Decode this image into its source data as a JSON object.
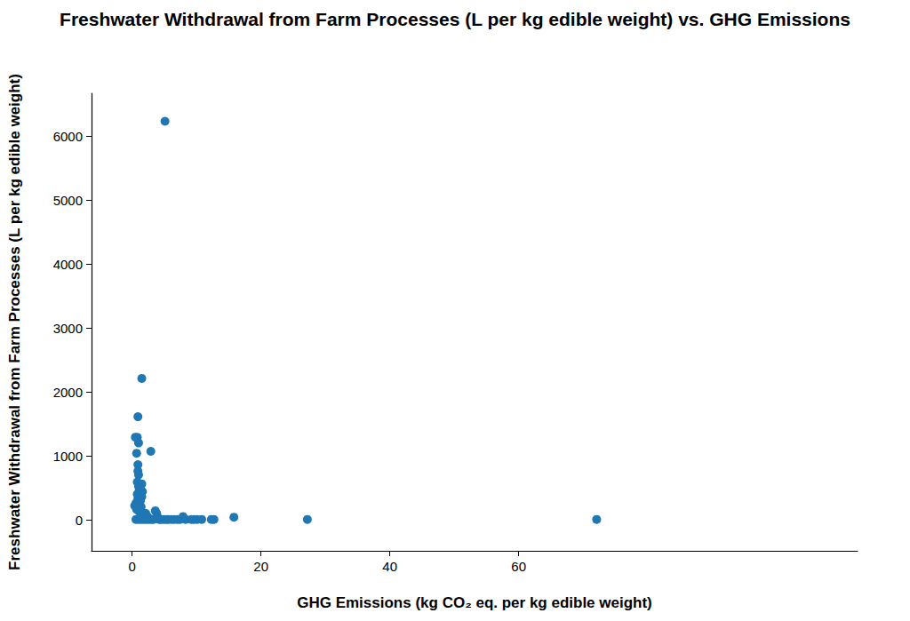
{
  "chart_data": {
    "type": "scatter",
    "title": "Freshwater Withdrawal from Farm Processes (L per kg edible weight) vs. GHG Emissions",
    "x_label": "GHG Emissions (kg CO₂ eq. per kg edible weight)",
    "y_label": "Freshwater Withdrawal from Farm Processes (L per kg edible weight)",
    "x": [
      5.1,
      1.5,
      0.9,
      0.5,
      0.8,
      1.0,
      2.9,
      0.7,
      0.9,
      0.9,
      1.0,
      0.8,
      1.2,
      1.5,
      1.0,
      1.3,
      1.1,
      1.6,
      0.8,
      1.2,
      1.5,
      0.9,
      1.3,
      0.6,
      1.0,
      0.4,
      1.4,
      0.7,
      1.1,
      1.6,
      2.1,
      3.6,
      3.8,
      2.4,
      4.0,
      7.9,
      15.8,
      27.2,
      72.1,
      0.6,
      1.0,
      1.4,
      1.8,
      2.2,
      2.6,
      3.0,
      3.3,
      4.2,
      4.5,
      4.9,
      5.3,
      5.6,
      6.1,
      6.5,
      7.0,
      7.4,
      8.3,
      9.2,
      9.6,
      10.1,
      10.8,
      12.3,
      12.7
    ],
    "values": [
      6230,
      2210,
      1610,
      1290,
      1290,
      1200,
      1070,
      1040,
      860,
      760,
      700,
      590,
      560,
      560,
      520,
      470,
      450,
      440,
      400,
      380,
      360,
      330,
      300,
      260,
      240,
      220,
      200,
      160,
      130,
      100,
      100,
      140,
      100,
      50,
      40,
      50,
      40,
      5,
      5,
      5,
      5,
      5,
      5,
      5,
      5,
      5,
      5,
      5,
      5,
      5,
      5,
      5,
      5,
      5,
      5,
      5,
      5,
      5,
      5,
      5,
      5,
      5,
      5
    ],
    "color": "#1f77b4",
    "marker": "circle",
    "xlim": [
      -6.3,
      112.6
    ],
    "ylim": [
      -486,
      6667
    ],
    "xticks": [
      0,
      20,
      40,
      60
    ],
    "yticks": [
      0,
      1000,
      2000,
      3000,
      4000,
      5000,
      6000
    ],
    "grid": false
  }
}
